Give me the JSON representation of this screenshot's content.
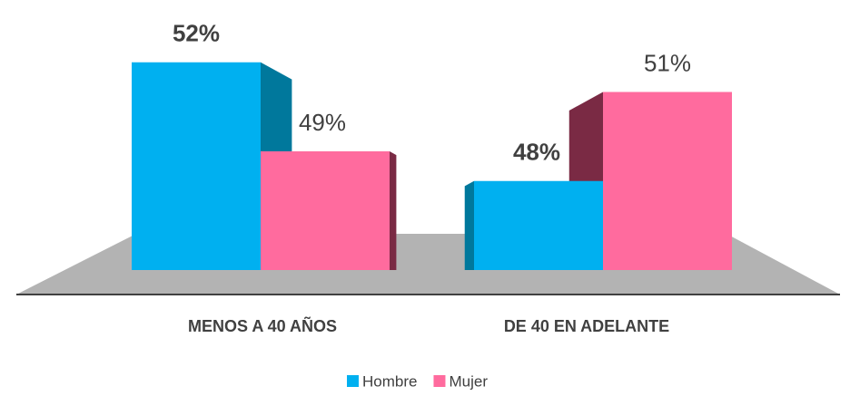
{
  "chart_data": {
    "type": "bar3d",
    "categories": [
      "MENOS A 40 AÑOS",
      "DE 40 EN ADELANTE"
    ],
    "series": [
      {
        "name": "Hombre",
        "color": "#00b0f0",
        "side_color": "#00789c",
        "values": [
          52,
          48
        ],
        "value_labels": [
          "52%",
          "48%"
        ],
        "bold": true
      },
      {
        "name": "Mujer",
        "color": "#ff6b9e",
        "side_color": "#7a2a44",
        "values": [
          49,
          51
        ],
        "value_labels": [
          "49%",
          "51%"
        ],
        "bold": false
      }
    ],
    "ylim": [
      45,
      53
    ],
    "legend": "bottom"
  }
}
